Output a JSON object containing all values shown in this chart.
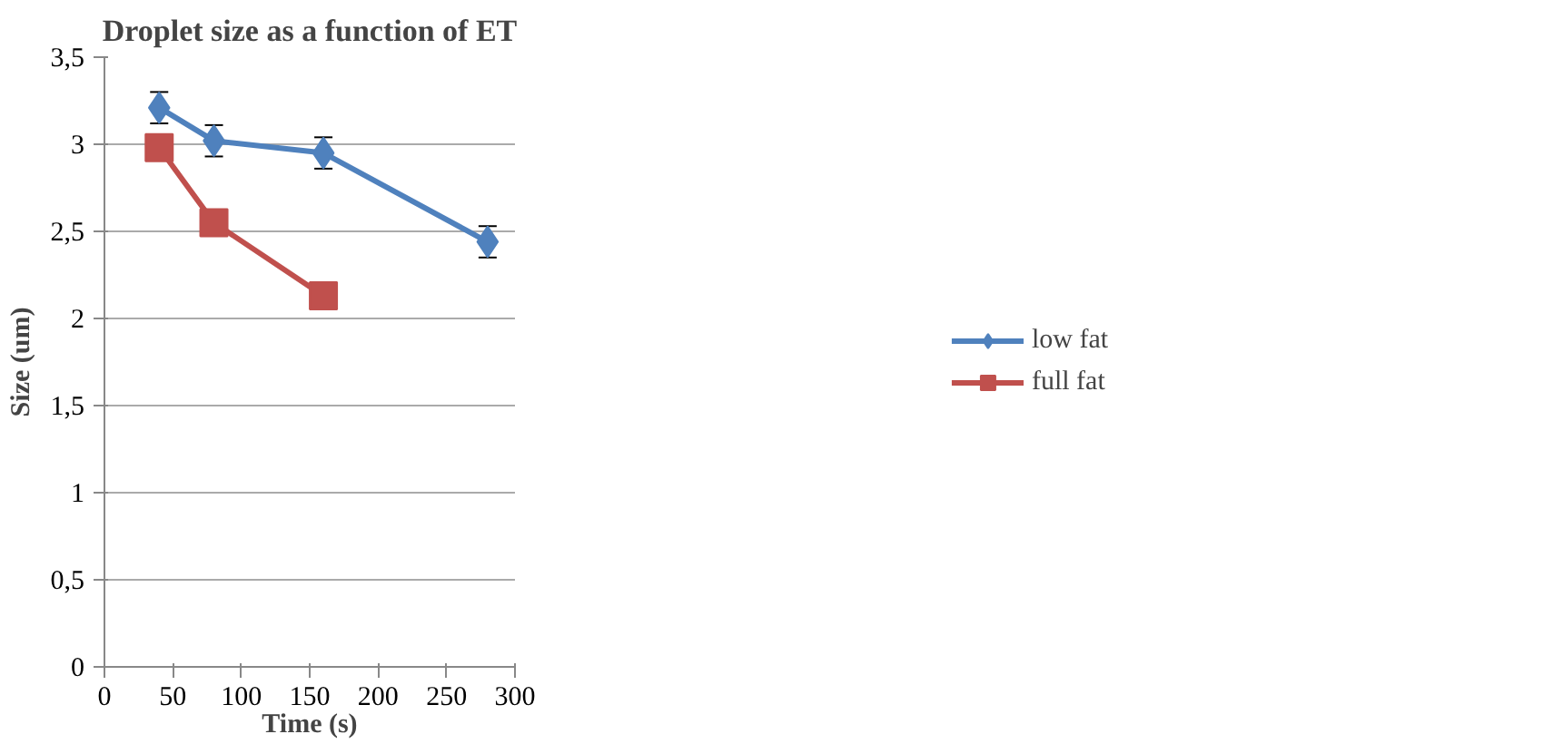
{
  "chart_data": {
    "type": "line",
    "title": "Droplet size as a function of ET",
    "xlabel": "Time (s)",
    "ylabel": "Size (um)",
    "xlim": [
      0,
      300
    ],
    "xticks": [
      0,
      50,
      100,
      150,
      200,
      250,
      300
    ],
    "ylim": [
      0,
      3.5
    ],
    "yticks": [
      {
        "value": 0,
        "label": "0"
      },
      {
        "value": 0.5,
        "label": "0,5"
      },
      {
        "value": 1,
        "label": "1"
      },
      {
        "value": 1.5,
        "label": "1,5"
      },
      {
        "value": 2,
        "label": "2"
      },
      {
        "value": 2.5,
        "label": "2,5"
      },
      {
        "value": 3,
        "label": "3"
      },
      {
        "value": 3.5,
        "label": "3,5"
      }
    ],
    "grid": "y",
    "legend": "right",
    "series": [
      {
        "name": "low fat",
        "color": "#4f81bd",
        "marker": "diamond",
        "x": [
          40,
          80,
          160,
          280
        ],
        "values": [
          3.21,
          3.02,
          2.95,
          2.44
        ],
        "errors": [
          0.09,
          0.09,
          0.09,
          0.09
        ]
      },
      {
        "name": "full fat",
        "color": "#c0504d",
        "marker": "square",
        "x": [
          40,
          80,
          160
        ],
        "values": [
          2.98,
          2.55,
          2.13
        ]
      }
    ]
  }
}
